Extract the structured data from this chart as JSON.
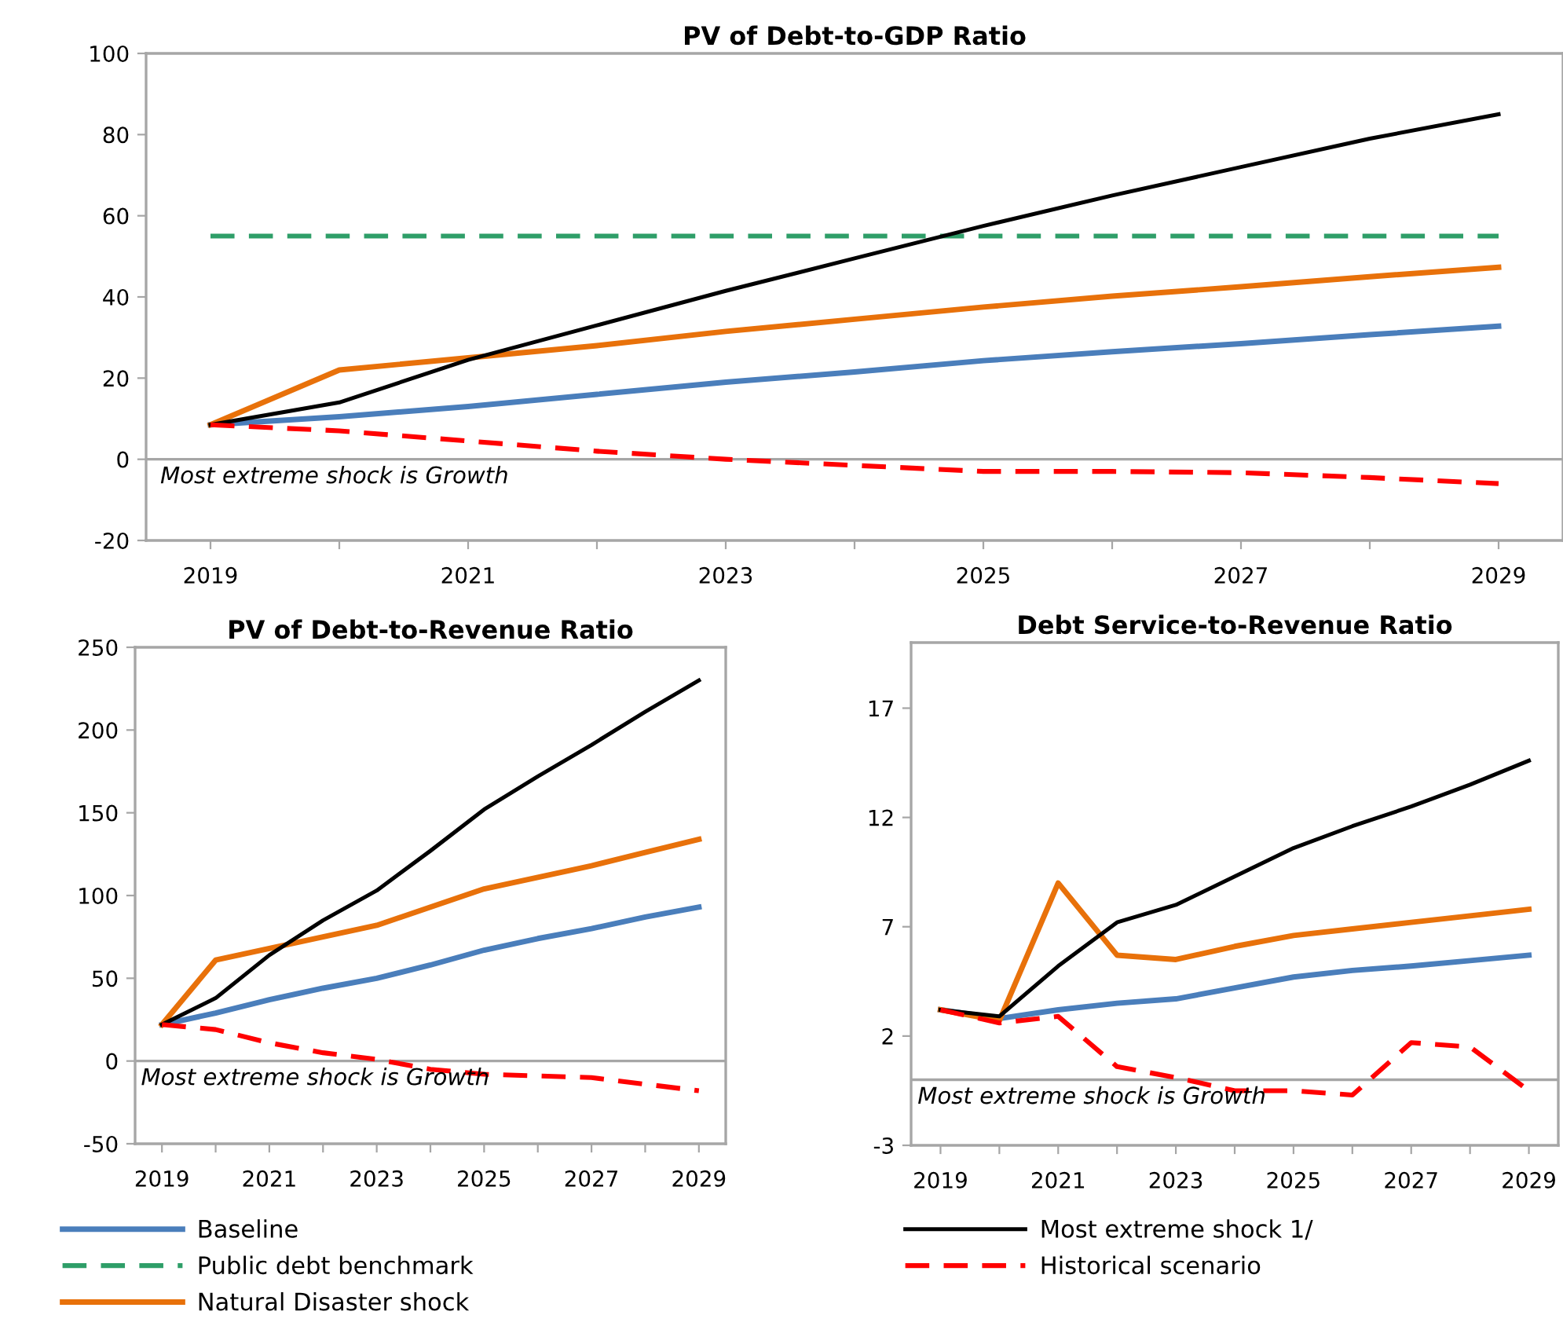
{
  "chart_data": [
    {
      "type": "line",
      "title": "PV of Debt-to-GDP Ratio",
      "x": [
        2019,
        2020,
        2021,
        2022,
        2023,
        2024,
        2025,
        2026,
        2027,
        2028,
        2029
      ],
      "series": [
        {
          "name": "Baseline",
          "color": "#4a7ebb",
          "values": [
            8.5,
            10.5,
            13,
            16,
            19,
            21.5,
            24.3,
            26.5,
            28.5,
            30.7,
            32.8
          ]
        },
        {
          "name": "Public debt benchmark",
          "color": "#2e9e68",
          "line_style": "dashed",
          "values": [
            55,
            55,
            55,
            55,
            55,
            55,
            55,
            55,
            55,
            55,
            55
          ]
        },
        {
          "name": "Natural Disaster shock",
          "color": "#e8710a",
          "values": [
            8.5,
            22,
            25,
            28,
            31.5,
            34.5,
            37.5,
            40.2,
            42.5,
            45,
            47.3
          ]
        },
        {
          "name": "Most extreme shock 1/",
          "color": "#000000",
          "values": [
            8.5,
            14,
            24.5,
            33,
            41.5,
            49.5,
            57.5,
            65,
            72,
            79,
            85
          ]
        },
        {
          "name": "Historical scenario",
          "color": "#ff0000",
          "line_style": "dashed",
          "values": [
            8.5,
            7,
            4.5,
            2,
            0,
            -1.5,
            -3,
            -3,
            -3.3,
            -4.5,
            -6
          ]
        }
      ],
      "xlim": [
        2018.5,
        2029.5
      ],
      "xticks": [
        2019,
        {
          "value": 2020,
          "label": null
        },
        2021,
        {
          "value": 2022,
          "label": null
        },
        2023,
        {
          "value": 2024,
          "label": null
        },
        2025,
        {
          "value": 2026,
          "label": null
        },
        2027,
        {
          "value": 2028,
          "label": null
        },
        2029
      ],
      "ylim": [
        -20,
        100
      ],
      "yticks": [
        -20,
        0,
        20,
        40,
        60,
        80,
        100
      ],
      "ref_lines": [
        {
          "axis": "y",
          "value": 0,
          "label": null,
          "color": "#a6a6a6"
        }
      ],
      "annotations": [
        "Most extreme shock is Growth"
      ],
      "legend": "bottom",
      "grid": false,
      "marker": "none"
    },
    {
      "type": "line",
      "title": "PV of Debt-to-Revenue Ratio",
      "x": [
        2019,
        2020,
        2021,
        2022,
        2023,
        2024,
        2025,
        2026,
        2027,
        2028,
        2029
      ],
      "series": [
        {
          "color": "#4a7ebb",
          "values": [
            22,
            29,
            37,
            44,
            50,
            58,
            67,
            74,
            80,
            87,
            93
          ]
        },
        {
          "color": "#e8710a",
          "values": [
            22,
            61,
            68,
            75,
            82,
            93,
            104,
            111,
            118,
            126,
            134
          ]
        },
        {
          "color": "#000000",
          "values": [
            22,
            38,
            64,
            85,
            103,
            127,
            152,
            172,
            191,
            211,
            230
          ]
        },
        {
          "color": "#ff0000",
          "line_style": "dashed",
          "values": [
            22,
            19,
            11,
            5,
            1,
            -5,
            -8,
            -9,
            -10,
            -14,
            -18
          ]
        }
      ],
      "xlim": [
        2018.5,
        2029.5
      ],
      "xticks": [
        2019,
        {
          "value": 2020,
          "label": null
        },
        2021,
        {
          "value": 2022,
          "label": null
        },
        2023,
        {
          "value": 2024,
          "label": null
        },
        2025,
        {
          "value": 2026,
          "label": null
        },
        2027,
        {
          "value": 2028,
          "label": null
        },
        2029
      ],
      "ylim": [
        -50,
        250
      ],
      "yticks": [
        -50,
        0,
        50,
        100,
        150,
        200,
        250
      ],
      "ref_lines": [
        {
          "axis": "y",
          "value": 0,
          "label": null,
          "color": "#a6a6a6"
        }
      ],
      "annotations": [
        "Most extreme shock is Growth"
      ],
      "legend": false,
      "grid": false,
      "marker": "none"
    },
    {
      "type": "line",
      "title": "Debt Service-to-Revenue Ratio",
      "x": [
        2019,
        2020,
        2021,
        2022,
        2023,
        2024,
        2025,
        2026,
        2027,
        2028,
        2029
      ],
      "series": [
        {
          "color": "#4a7ebb",
          "values": [
            3.2,
            2.8,
            3.2,
            3.5,
            3.7,
            4.2,
            4.7,
            5.0,
            5.2,
            5.45,
            5.7
          ]
        },
        {
          "color": "#e8710a",
          "values": [
            3.2,
            2.7,
            9.0,
            5.7,
            5.5,
            6.1,
            6.6,
            6.9,
            7.2,
            7.5,
            7.8
          ]
        },
        {
          "color": "#000000",
          "values": [
            3.2,
            2.9,
            5.2,
            7.2,
            8.0,
            9.3,
            10.6,
            11.6,
            12.5,
            13.5,
            14.6
          ]
        },
        {
          "color": "#ff0000",
          "line_style": "dashed",
          "values": [
            3.2,
            2.6,
            2.9,
            0.6,
            0.1,
            -0.5,
            -0.5,
            -0.7,
            1.7,
            1.5,
            -0.5
          ]
        }
      ],
      "xlim": [
        2018.5,
        2029.5
      ],
      "xticks": [
        2019,
        {
          "value": 2020,
          "label": null
        },
        2021,
        {
          "value": 2022,
          "label": null
        },
        2023,
        {
          "value": 2024,
          "label": null
        },
        2025,
        {
          "value": 2026,
          "label": null
        },
        2027,
        {
          "value": 2028,
          "label": null
        },
        2029
      ],
      "ylim": [
        -3,
        20
      ],
      "yticks": [
        -3,
        2,
        7,
        12,
        17
      ],
      "ref_lines": [
        {
          "axis": "y",
          "value": 0,
          "label": null,
          "color": "#a6a6a6"
        }
      ],
      "annotations": [
        "Most extreme shock is Growth"
      ],
      "legend": false,
      "grid": false,
      "marker": "none"
    }
  ]
}
